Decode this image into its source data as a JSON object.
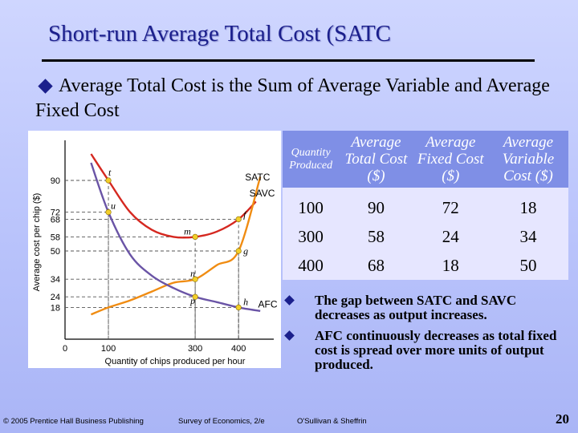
{
  "slide": {
    "title": "Short-run Average Total Cost (SATC",
    "bullet": "Average Total Cost is the Sum of Average Variable and Average Fixed Cost",
    "page_number": "20"
  },
  "footer": {
    "copyright": "© 2005 Prentice Hall Business Publishing",
    "book": "Survey of Economics, 2/e",
    "authors": "O'Sullivan & Sheffrin"
  },
  "chart_data": {
    "type": "line",
    "xlabel": "Quantity of chips produced per hour",
    "ylabel": "Average cost per chip ($)",
    "x_ticks": [
      {
        "label": "0",
        "value": 0
      },
      {
        "label": "100",
        "value": 100
      },
      {
        "label": "300",
        "value": 300
      },
      {
        "label": "400",
        "value": 400
      }
    ],
    "y_ticks": [
      {
        "label": "90",
        "value": 90
      },
      {
        "label": "72",
        "value": 72
      },
      {
        "label": "68",
        "value": 68
      },
      {
        "label": "58",
        "value": 58
      },
      {
        "label": "50",
        "value": 50
      },
      {
        "label": "34",
        "value": 34
      },
      {
        "label": "24",
        "value": 24
      },
      {
        "label": "18",
        "value": 18
      }
    ],
    "xlim": [
      0,
      470
    ],
    "ylim": [
      0,
      110
    ],
    "grid": false,
    "colors": {
      "SATC": "#d52820",
      "SAVC": "#f08c12",
      "AFC": "#6a54a6",
      "points": "#f3cf2a"
    },
    "series": [
      {
        "name": "SATC",
        "x": [
          60,
          100,
          150,
          200,
          250,
          300,
          350,
          400,
          440
        ],
        "y": [
          105,
          90,
          72,
          62,
          58,
          58,
          61,
          68,
          78
        ]
      },
      {
        "name": "SAVC",
        "x": [
          60,
          100,
          150,
          200,
          250,
          300,
          350,
          400,
          450
        ],
        "y": [
          14,
          18,
          22,
          27,
          32,
          34,
          42,
          50,
          92
        ]
      },
      {
        "name": "AFC",
        "x": [
          60,
          100,
          150,
          200,
          250,
          300,
          350,
          400,
          450
        ],
        "y": [
          100,
          72,
          48,
          36,
          29,
          24,
          21,
          18,
          16
        ]
      }
    ],
    "points": [
      {
        "label": "t",
        "x": 100,
        "y": 90
      },
      {
        "label": "u",
        "x": 100,
        "y": 72
      },
      {
        "label": "m",
        "x": 300,
        "y": 58
      },
      {
        "label": "f",
        "x": 400,
        "y": 68
      },
      {
        "label": "g",
        "x": 400,
        "y": 50
      },
      {
        "label": "n",
        "x": 300,
        "y": 34
      },
      {
        "label": "p",
        "x": 300,
        "y": 24
      },
      {
        "label": "h",
        "x": 400,
        "y": 18
      }
    ],
    "curve_labels": [
      {
        "text": "SATC",
        "x": 415,
        "y": 90
      },
      {
        "text": "SAVC",
        "x": 425,
        "y": 81
      },
      {
        "text": "AFC",
        "x": 445,
        "y": 18
      }
    ]
  },
  "table": {
    "headers": [
      "Quantity Produced",
      "Average Total Cost ($)",
      "Average Fixed Cost ($)",
      "Average Variable Cost ($)"
    ],
    "rows": [
      [
        "100",
        "90",
        "72",
        "18"
      ],
      [
        "300",
        "58",
        "24",
        "34"
      ],
      [
        "400",
        "68",
        "18",
        "50"
      ]
    ]
  },
  "notes": [
    "The gap between SATC and SAVC decreases as output increases.",
    "AFC continuously decreases as total fixed cost is spread over more units of output produced."
  ]
}
